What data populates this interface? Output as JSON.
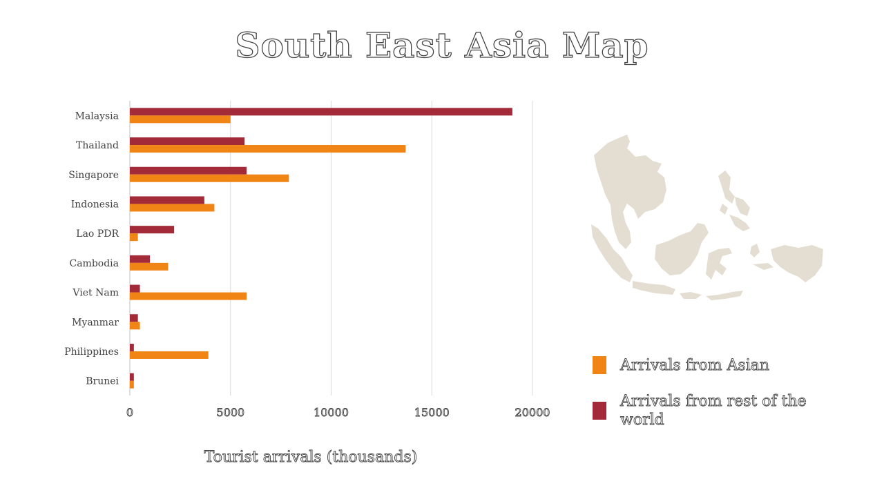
{
  "title": "South East Asia Map",
  "colors": {
    "asian": "#f08414",
    "rest": "#a32a38",
    "map": "#e4ddd2",
    "grid": "#d9d9d9"
  },
  "chart_data": {
    "type": "bar",
    "orientation": "horizontal",
    "categories": [
      "Malaysia",
      "Thailand",
      "Singapore",
      "Indonesia",
      "Lao PDR",
      "Cambodia",
      "Viet Nam",
      "Myanmar",
      "Philippines",
      "Brunei"
    ],
    "series": [
      {
        "name": "Arrivals from rest of the world",
        "color": "#a32a38",
        "values": [
          19000,
          5700,
          5800,
          3700,
          2200,
          1000,
          500,
          400,
          200,
          200
        ]
      },
      {
        "name": "Arrivals from Asian",
        "color": "#f08414",
        "values": [
          5000,
          13700,
          7900,
          4200,
          400,
          1900,
          5800,
          500,
          3900,
          200
        ]
      }
    ],
    "xlabel": "Tourist arrivals (thousands)",
    "ylabel": "",
    "xlim": [
      0,
      20000
    ],
    "xticks": [
      "0",
      "5000",
      "10000",
      "15000",
      "20000"
    ],
    "grid": true,
    "legend_position": "bottom-right"
  },
  "legend": [
    {
      "label": "Arrivals from Asian",
      "color": "#f08414"
    },
    {
      "label": "Arrivals from rest of the world",
      "color": "#a32a38"
    }
  ],
  "map_icon": "south-east-asia-map-icon"
}
